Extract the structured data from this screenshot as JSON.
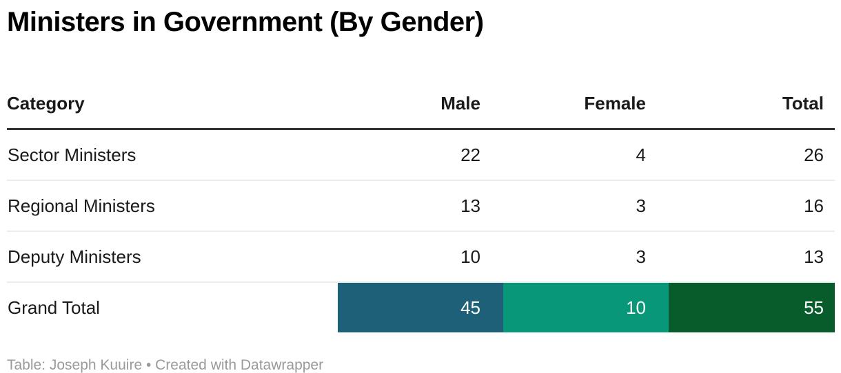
{
  "title": "Ministers in Government (By Gender)",
  "table": {
    "columns": [
      {
        "label": "Category"
      },
      {
        "label": "Male"
      },
      {
        "label": "Female"
      },
      {
        "label": "Total"
      }
    ],
    "rows": [
      {
        "category": "Sector Ministers",
        "male": "22",
        "female": "4",
        "total": "26"
      },
      {
        "category": "Regional Ministers",
        "male": "13",
        "female": "3",
        "total": "16"
      },
      {
        "category": "Deputy Ministers",
        "male": "10",
        "female": "3",
        "total": "13"
      }
    ],
    "total_row": {
      "category": "Grand Total",
      "male": "45",
      "female": "10",
      "total": "55"
    }
  },
  "footer": {
    "text": "Table: Joseph Kuuire • Created with Datawrapper"
  },
  "colors": {
    "male_total_bg": "#1d6078",
    "female_total_bg": "#089778",
    "grand_total_bg": "#085c2c",
    "total_text": "#ffffff",
    "header_border": "#333333",
    "row_divider": "#ececec",
    "footer_text": "#9a9a9a"
  },
  "chart_data": {
    "type": "table",
    "title": "Ministers in Government (By Gender)",
    "columns": [
      "Category",
      "Male",
      "Female",
      "Total"
    ],
    "rows": [
      [
        "Sector Ministers",
        22,
        4,
        26
      ],
      [
        "Regional Ministers",
        13,
        3,
        16
      ],
      [
        "Deputy Ministers",
        10,
        3,
        13
      ],
      [
        "Grand Total",
        45,
        10,
        55
      ]
    ],
    "notes": "Grand Total row cells are color-highlighted: Male=#1d6078, Female=#089778, Total=#085c2c"
  }
}
